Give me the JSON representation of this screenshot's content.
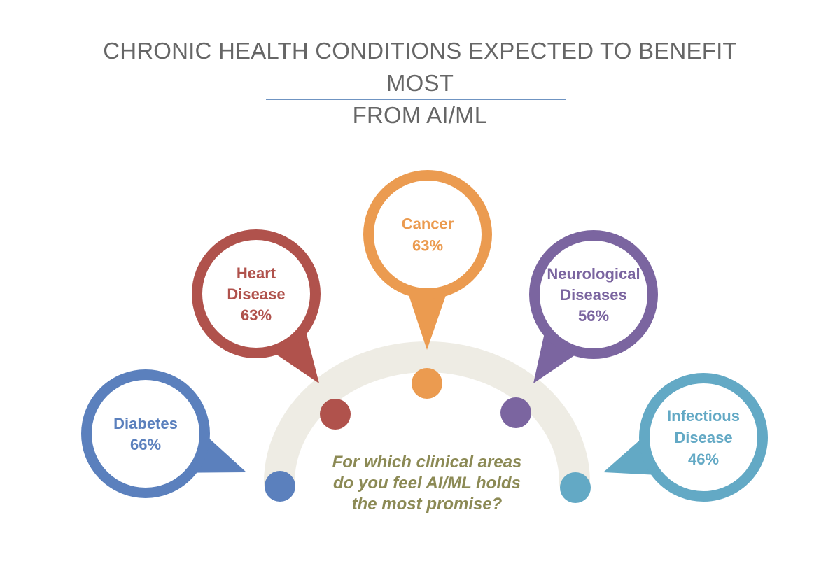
{
  "title": {
    "line1": "CHRONIC HEALTH CONDITIONS EXPECTED TO BENEFIT MOST",
    "line2": "FROM AI/ML"
  },
  "prompt": {
    "lines": [
      "For which clinical areas",
      "do you feel AI/ML holds",
      "the most promise?"
    ],
    "color": "#8c8a55"
  },
  "arc_color": "#eeece4",
  "conditions": [
    {
      "id": "diabetes",
      "lines": [
        "Diabetes",
        "66%"
      ],
      "label": "Diabetes",
      "percent": "66%",
      "color": "#5b80bd"
    },
    {
      "id": "heart-disease",
      "lines": [
        "Heart",
        "Disease",
        "63%"
      ],
      "label": "Heart Disease",
      "percent": "63%",
      "color": "#b0524c"
    },
    {
      "id": "cancer",
      "lines": [
        "Cancer",
        "63%"
      ],
      "label": "Cancer",
      "percent": "63%",
      "color": "#eb9b50"
    },
    {
      "id": "neurological-diseases",
      "lines": [
        "Neurological",
        "Diseases",
        "56%"
      ],
      "label": "Neurological Diseases",
      "percent": "56%",
      "color": "#7b65a0"
    },
    {
      "id": "infectious-disease",
      "lines": [
        "Infectious",
        "Disease",
        "46%"
      ],
      "label": "Infectious Disease",
      "percent": "46%",
      "color": "#63a9c5"
    }
  ]
}
